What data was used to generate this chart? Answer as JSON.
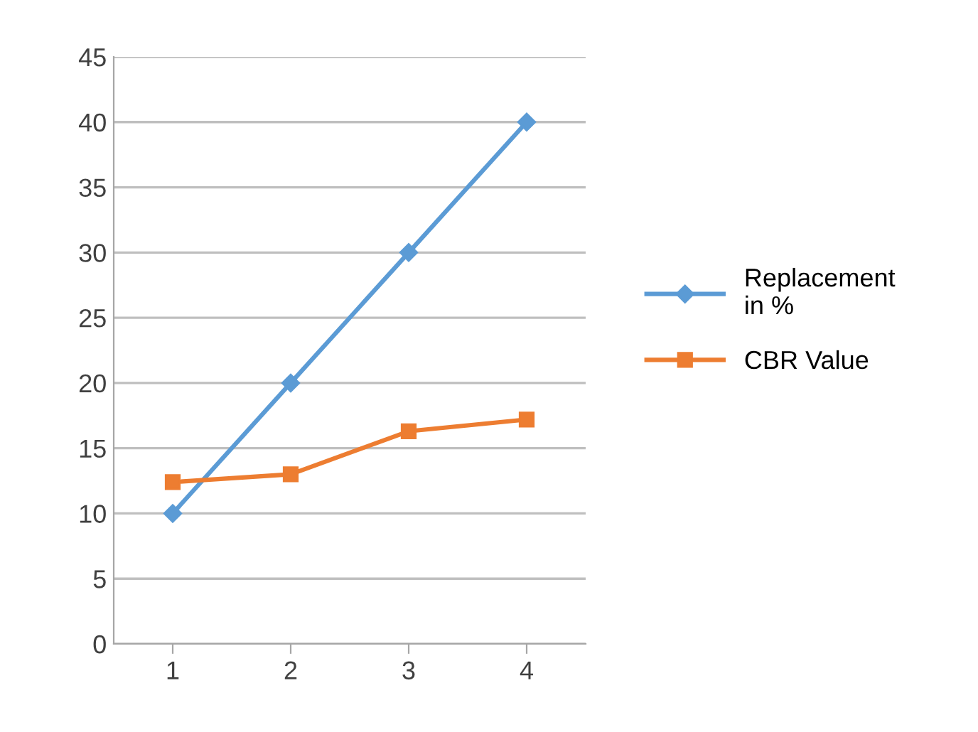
{
  "chart_data": {
    "type": "line",
    "categories": [
      "1",
      "2",
      "3",
      "4"
    ],
    "series": [
      {
        "name": "Replacement in %",
        "color": "#5b9bd5",
        "values": [
          10,
          20,
          30,
          40
        ],
        "marker": "diamond"
      },
      {
        "name": "CBR Value",
        "color": "#ed7d31",
        "values": [
          12.4,
          13,
          16.3,
          17.2
        ],
        "marker": "square"
      }
    ],
    "ylim": [
      0,
      45
    ],
    "yticks": [
      0,
      5,
      10,
      15,
      20,
      25,
      30,
      35,
      40,
      45
    ],
    "grid": "y",
    "legend": "right",
    "line_style": "solid"
  }
}
